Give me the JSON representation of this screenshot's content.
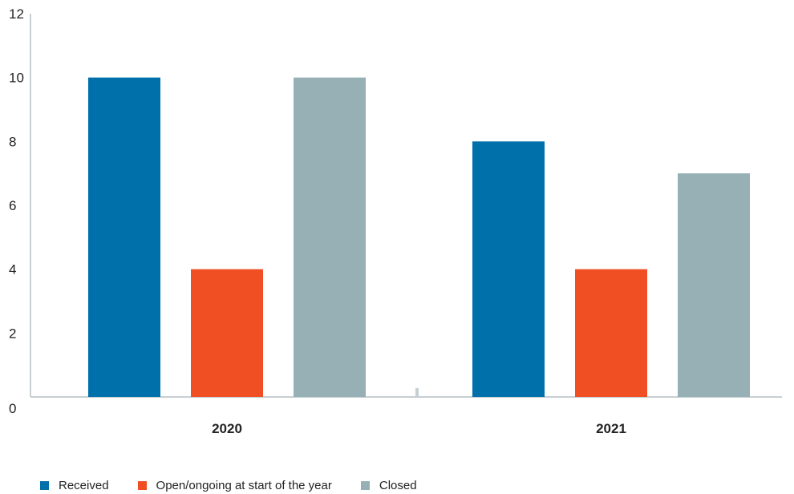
{
  "chart_data": {
    "type": "bar",
    "categories": [
      "2020",
      "2021"
    ],
    "series": [
      {
        "name": "Received",
        "values": [
          10,
          8
        ],
        "color": "#0070AB"
      },
      {
        "name": "Open/ongoing at start of the year",
        "values": [
          4,
          4
        ],
        "color": "#F04E23"
      },
      {
        "name": "Closed",
        "values": [
          10,
          7
        ],
        "color": "#97B0B5"
      }
    ],
    "y_ticks": [
      "0",
      "2",
      "4",
      "6",
      "8",
      "10",
      "12"
    ],
    "ylim": [
      0,
      12
    ],
    "title": "",
    "xlabel": "",
    "ylabel": "",
    "grid": false,
    "legend_position": "bottom-left"
  }
}
